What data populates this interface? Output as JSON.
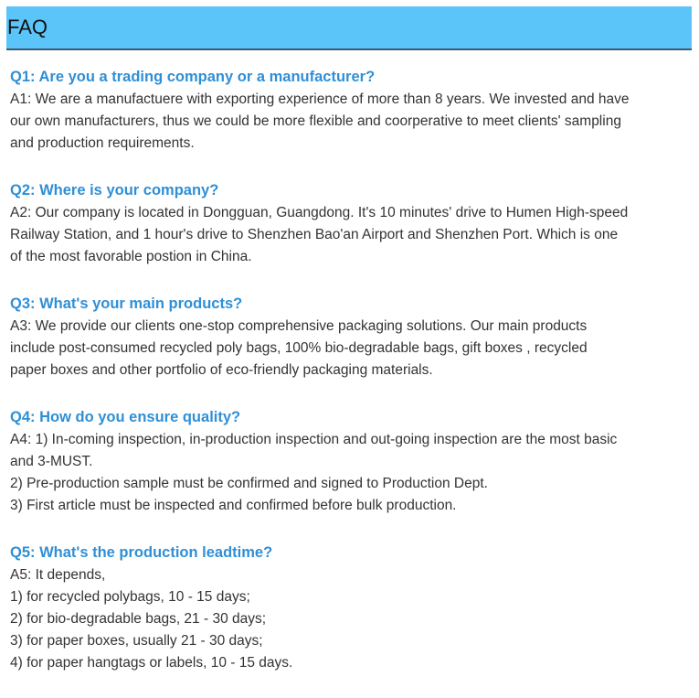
{
  "header": {
    "title": "FAQ",
    "background": "#5bc4f8"
  },
  "faq": [
    {
      "question": "Q1: Are you a trading company or a manufacturer?",
      "answer_lines": [
        "A1: We are a manufactuere with exporting experience of more than 8 years. We invested and have",
        "our own manufacturers, thus we could be more flexible and coorperative to meet clients' sampling",
        "and production requirements."
      ]
    },
    {
      "question": "Q2: Where is your company?",
      "answer_lines": [
        "A2: Our company is located in Dongguan, Guangdong. It's 10 minutes' drive to Humen High-speed",
        "Railway Station, and 1 hour's drive to Shenzhen Bao'an Airport and Shenzhen Port. Which is one",
        "of the most favorable postion in China."
      ]
    },
    {
      "question": "Q3: What's your main products?",
      "answer_lines": [
        "A3: We provide our clients one-stop comprehensive packaging solutions. Our main products",
        "include post-consumed recycled poly bags, 100% bio-degradable bags, gift boxes , recycled",
        "paper boxes and other portfolio of eco-friendly packaging materials."
      ]
    },
    {
      "question": "Q4: How do you ensure quality?",
      "answer_lines": [
        "A4: 1) In-coming inspection, in-production inspection and out-going inspection are the most basic",
        "and 3-MUST.",
        "2) Pre-production sample must be confirmed and signed to Production Dept.",
        "3) First article must be inspected and confirmed before bulk production."
      ]
    },
    {
      "question": "Q5: What's the production leadtime?",
      "answer_lines": [
        "A5: It depends,",
        "1) for recycled polybags, 10 - 15 days;",
        "2) for bio-degradable bags, 21 - 30 days;",
        "3) for paper boxes, usually 21 - 30 days;",
        "4) for paper hangtags or labels, 10 - 15 days."
      ]
    }
  ]
}
